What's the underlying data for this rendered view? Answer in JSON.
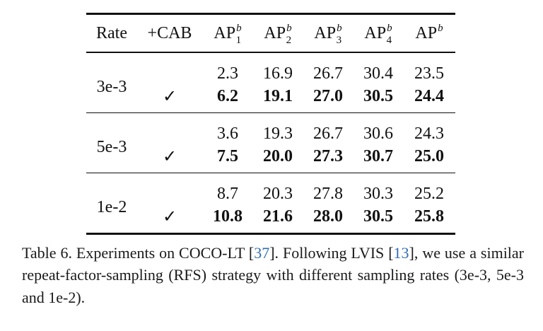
{
  "table": {
    "headers": {
      "rate": "Rate",
      "cab": "+CAB",
      "ap_base": "AP",
      "ap_sup": "b",
      "ap1_sub": "1",
      "ap2_sub": "2",
      "ap3_sub": "3",
      "ap4_sub": "4"
    },
    "check_symbol": "✓",
    "groups": [
      {
        "rate": "3e-3",
        "base": [
          "2.3",
          "16.9",
          "26.7",
          "30.4",
          "23.5"
        ],
        "cab": [
          "6.2",
          "19.1",
          "27.0",
          "30.5",
          "24.4"
        ]
      },
      {
        "rate": "5e-3",
        "base": [
          "3.6",
          "19.3",
          "26.7",
          "30.6",
          "24.3"
        ],
        "cab": [
          "7.5",
          "20.0",
          "27.3",
          "30.7",
          "25.0"
        ]
      },
      {
        "rate": "1e-2",
        "base": [
          "8.7",
          "20.3",
          "27.8",
          "30.3",
          "25.2"
        ],
        "cab": [
          "10.8",
          "21.6",
          "28.0",
          "30.5",
          "25.8"
        ]
      }
    ]
  },
  "caption": {
    "part1": "Table 6. Experiments on COCO-LT [",
    "ref1": "37",
    "part2": "]. Following LVIS [",
    "ref2": "13",
    "part3": "], we use a similar repeat-factor-sampling (RFS) strategy with different sampling rates (3e-3, 5e-3 and 1e-2)."
  },
  "colors": {
    "citation": "#2f6db5",
    "text": "#111111"
  }
}
